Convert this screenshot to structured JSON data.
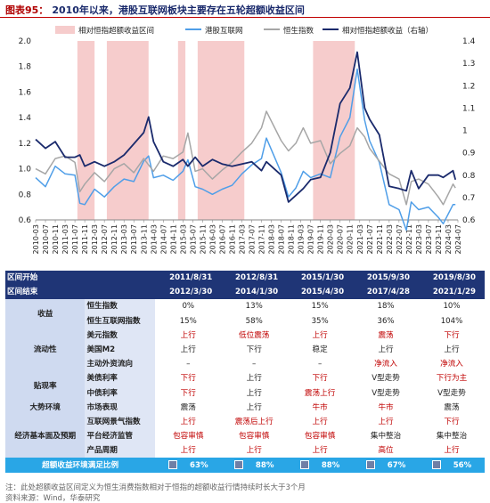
{
  "header": {
    "label": "图表95：",
    "text": "2010年以来，港股互联网板块主要存在五轮超额收益区间"
  },
  "chart_data": {
    "type": "line",
    "legend": [
      "相对恒指超额收益区间",
      "港股互联网",
      "恒生指数",
      "相对恒指超额收益（右轴）"
    ],
    "x_ticks": [
      "2010-03",
      "2010-07",
      "2010-11",
      "2011-03",
      "2011-07",
      "2011-11",
      "2012-03",
      "2012-07",
      "2012-11",
      "2013-03",
      "2013-07",
      "2013-11",
      "2014-03",
      "2014-07",
      "2014-11",
      "2015-03",
      "2015-07",
      "2015-11",
      "2016-03",
      "2016-07",
      "2016-11",
      "2017-03",
      "2017-07",
      "2017-11",
      "2018-03",
      "2018-07",
      "2018-11",
      "2019-03",
      "2019-07",
      "2019-11",
      "2020-03",
      "2020-07",
      "2020-11",
      "2021-03",
      "2021-07",
      "2021-11",
      "2022-03",
      "2022-07",
      "2022-11",
      "2023-03",
      "2023-07",
      "2023-11",
      "2024-03",
      "2024-07"
    ],
    "left_axis": {
      "ylim": [
        0.6,
        2.0
      ],
      "ticks": [
        "0.6",
        "0.8",
        "1.0",
        "1.2",
        "1.4",
        "1.6",
        "1.8",
        "2.0"
      ]
    },
    "right_axis": {
      "ylim": [
        0.6,
        1.4
      ],
      "ticks": [
        "0.6",
        "0.7",
        "0.8",
        "0.9",
        "1",
        "1.1",
        "1.2",
        "1.3",
        "1.4"
      ]
    },
    "shaded_periods": [
      [
        "2011-08",
        "2012-03"
      ],
      [
        "2012-08",
        "2014-01"
      ],
      [
        "2015-01",
        "2015-04"
      ],
      [
        "2015-09",
        "2017-04"
      ],
      [
        "2019-08",
        "2021-01"
      ]
    ],
    "colors": {
      "shade": "#f6cccc",
      "hk_internet": "#4f9ee8",
      "hsi": "#a6a6a6",
      "relative": "#1a2a6c"
    },
    "series": [
      {
        "name": "港股互联网",
        "axis": "left",
        "points": [
          [
            "2010-03",
            0.93
          ],
          [
            "2010-07",
            0.86
          ],
          [
            "2010-11",
            1.02
          ],
          [
            "2011-03",
            0.96
          ],
          [
            "2011-07",
            0.95
          ],
          [
            "2011-09",
            0.73
          ],
          [
            "2011-11",
            0.72
          ],
          [
            "2012-03",
            0.84
          ],
          [
            "2012-07",
            0.78
          ],
          [
            "2012-11",
            0.86
          ],
          [
            "2013-03",
            0.92
          ],
          [
            "2013-07",
            0.9
          ],
          [
            "2013-11",
            1.06
          ],
          [
            "2014-01",
            1.1
          ],
          [
            "2014-03",
            0.93
          ],
          [
            "2014-07",
            0.95
          ],
          [
            "2014-11",
            0.91
          ],
          [
            "2015-03",
            0.98
          ],
          [
            "2015-05",
            1.07
          ],
          [
            "2015-08",
            0.86
          ],
          [
            "2015-11",
            0.84
          ],
          [
            "2016-03",
            0.8
          ],
          [
            "2016-07",
            0.84
          ],
          [
            "2016-11",
            0.87
          ],
          [
            "2017-03",
            0.96
          ],
          [
            "2017-07",
            1.03
          ],
          [
            "2017-11",
            1.08
          ],
          [
            "2018-01",
            1.24
          ],
          [
            "2018-07",
            0.97
          ],
          [
            "2018-10",
            0.78
          ],
          [
            "2019-01",
            0.85
          ],
          [
            "2019-04",
            0.98
          ],
          [
            "2019-07",
            0.93
          ],
          [
            "2019-11",
            0.96
          ],
          [
            "2020-03",
            0.93
          ],
          [
            "2020-07",
            1.25
          ],
          [
            "2020-11",
            1.4
          ],
          [
            "2021-02",
            1.78
          ],
          [
            "2021-05",
            1.38
          ],
          [
            "2021-07",
            1.22
          ],
          [
            "2021-11",
            1.05
          ],
          [
            "2022-03",
            0.72
          ],
          [
            "2022-07",
            0.68
          ],
          [
            "2022-10",
            0.52
          ],
          [
            "2022-12",
            0.74
          ],
          [
            "2023-03",
            0.68
          ],
          [
            "2023-07",
            0.7
          ],
          [
            "2023-11",
            0.62
          ],
          [
            "2024-01",
            0.57
          ],
          [
            "2024-05",
            0.72
          ],
          [
            "2024-06",
            0.72
          ]
        ]
      },
      {
        "name": "恒生指数",
        "axis": "left",
        "points": [
          [
            "2010-03",
            1.0
          ],
          [
            "2010-07",
            0.96
          ],
          [
            "2010-11",
            1.08
          ],
          [
            "2011-03",
            1.1
          ],
          [
            "2011-07",
            1.05
          ],
          [
            "2011-09",
            0.82
          ],
          [
            "2011-11",
            0.88
          ],
          [
            "2012-03",
            0.97
          ],
          [
            "2012-07",
            0.9
          ],
          [
            "2012-11",
            1.0
          ],
          [
            "2013-03",
            1.04
          ],
          [
            "2013-07",
            0.97
          ],
          [
            "2013-11",
            1.08
          ],
          [
            "2014-03",
            0.98
          ],
          [
            "2014-07",
            1.1
          ],
          [
            "2014-11",
            1.08
          ],
          [
            "2015-03",
            1.13
          ],
          [
            "2015-05",
            1.28
          ],
          [
            "2015-08",
            0.98
          ],
          [
            "2015-11",
            1.0
          ],
          [
            "2016-03",
            0.92
          ],
          [
            "2016-07",
            0.99
          ],
          [
            "2016-11",
            1.05
          ],
          [
            "2017-03",
            1.13
          ],
          [
            "2017-07",
            1.2
          ],
          [
            "2017-11",
            1.32
          ],
          [
            "2018-01",
            1.45
          ],
          [
            "2018-07",
            1.22
          ],
          [
            "2018-10",
            1.14
          ],
          [
            "2019-01",
            1.2
          ],
          [
            "2019-04",
            1.32
          ],
          [
            "2019-07",
            1.2
          ],
          [
            "2019-11",
            1.22
          ],
          [
            "2020-03",
            1.04
          ],
          [
            "2020-07",
            1.12
          ],
          [
            "2020-11",
            1.18
          ],
          [
            "2021-02",
            1.32
          ],
          [
            "2021-05",
            1.25
          ],
          [
            "2021-07",
            1.16
          ],
          [
            "2021-11",
            1.06
          ],
          [
            "2022-03",
            0.96
          ],
          [
            "2022-07",
            0.92
          ],
          [
            "2022-10",
            0.72
          ],
          [
            "2022-12",
            0.9
          ],
          [
            "2023-03",
            0.92
          ],
          [
            "2023-07",
            0.88
          ],
          [
            "2023-11",
            0.78
          ],
          [
            "2024-01",
            0.72
          ],
          [
            "2024-05",
            0.88
          ],
          [
            "2024-06",
            0.85
          ]
        ]
      },
      {
        "name": "相对恒指超额收益（右轴）",
        "axis": "right",
        "points": [
          [
            "2010-03",
            0.96
          ],
          [
            "2010-07",
            0.92
          ],
          [
            "2010-11",
            0.95
          ],
          [
            "2011-03",
            0.88
          ],
          [
            "2011-07",
            0.88
          ],
          [
            "2011-09",
            0.89
          ],
          [
            "2011-11",
            0.84
          ],
          [
            "2012-03",
            0.86
          ],
          [
            "2012-07",
            0.84
          ],
          [
            "2012-11",
            0.86
          ],
          [
            "2013-03",
            0.89
          ],
          [
            "2013-07",
            0.94
          ],
          [
            "2013-11",
            0.99
          ],
          [
            "2014-01",
            1.06
          ],
          [
            "2014-03",
            0.95
          ],
          [
            "2014-07",
            0.86
          ],
          [
            "2014-11",
            0.84
          ],
          [
            "2015-03",
            0.87
          ],
          [
            "2015-05",
            0.84
          ],
          [
            "2015-08",
            0.88
          ],
          [
            "2015-11",
            0.84
          ],
          [
            "2016-03",
            0.87
          ],
          [
            "2016-07",
            0.85
          ],
          [
            "2016-11",
            0.84
          ],
          [
            "2017-03",
            0.85
          ],
          [
            "2017-07",
            0.86
          ],
          [
            "2017-11",
            0.82
          ],
          [
            "2018-01",
            0.86
          ],
          [
            "2018-07",
            0.8
          ],
          [
            "2018-10",
            0.68
          ],
          [
            "2019-01",
            0.71
          ],
          [
            "2019-04",
            0.74
          ],
          [
            "2019-07",
            0.78
          ],
          [
            "2019-11",
            0.79
          ],
          [
            "2020-03",
            0.9
          ],
          [
            "2020-07",
            1.12
          ],
          [
            "2020-11",
            1.19
          ],
          [
            "2021-02",
            1.35
          ],
          [
            "2021-05",
            1.1
          ],
          [
            "2021-07",
            1.05
          ],
          [
            "2021-11",
            0.98
          ],
          [
            "2022-03",
            0.75
          ],
          [
            "2022-07",
            0.74
          ],
          [
            "2022-10",
            0.73
          ],
          [
            "2022-12",
            0.82
          ],
          [
            "2023-03",
            0.74
          ],
          [
            "2023-07",
            0.8
          ],
          [
            "2023-11",
            0.8
          ],
          [
            "2024-01",
            0.79
          ],
          [
            "2024-05",
            0.82
          ],
          [
            "2024-06",
            0.78
          ]
        ]
      }
    ]
  },
  "table": {
    "header_rows": [
      [
        "区间开始",
        "",
        "2011/8/31",
        "2012/8/31",
        "2015/1/30",
        "2015/9/30",
        "2019/8/30"
      ],
      [
        "区间结束",
        "",
        "2012/3/30",
        "2014/1/30",
        "2015/4/30",
        "2017/4/28",
        "2021/1/29"
      ]
    ],
    "rows": [
      {
        "sec": "收益",
        "ind": "恒生指数",
        "v": [
          "0%",
          "13%",
          "15%",
          "18%",
          "10%"
        ],
        "red": [
          0,
          0,
          0,
          0,
          0
        ]
      },
      {
        "sec": "",
        "ind": "恒生互联网指数",
        "v": [
          "15%",
          "58%",
          "35%",
          "36%",
          "104%"
        ],
        "red": [
          0,
          0,
          0,
          0,
          0
        ]
      },
      {
        "sec": "流动性",
        "ind": "美元指数",
        "v": [
          "上行",
          "低位震荡",
          "上行",
          "震荡",
          "下行"
        ],
        "red": [
          1,
          1,
          1,
          1,
          1
        ]
      },
      {
        "sec": "",
        "ind": "美国M2",
        "v": [
          "上行",
          "下行",
          "稳定",
          "上行",
          "上行"
        ],
        "red": [
          0,
          0,
          0,
          0,
          0
        ]
      },
      {
        "sec": "",
        "ind": "主动外资流向",
        "v": [
          "–",
          "–",
          "–",
          "净流入",
          "净流入"
        ],
        "red": [
          0,
          0,
          0,
          1,
          1
        ]
      },
      {
        "sec": "贴现率",
        "ind": "美债利率",
        "v": [
          "下行",
          "上行",
          "下行",
          "V型走势",
          "下行为主"
        ],
        "red": [
          1,
          0,
          1,
          0,
          1
        ]
      },
      {
        "sec": "",
        "ind": "中债利率",
        "v": [
          "下行",
          "上行",
          "震荡上行",
          "V型走势",
          "V型走势"
        ],
        "red": [
          1,
          0,
          1,
          0,
          0
        ]
      },
      {
        "sec": "大势环境",
        "ind": "市场表现",
        "v": [
          "震荡",
          "上行",
          "牛市",
          "牛市",
          "震荡"
        ],
        "red": [
          0,
          0,
          1,
          1,
          0
        ]
      },
      {
        "sec": "经济基本面及预期",
        "ind": "互联网景气指数",
        "v": [
          "上行",
          "震荡后上行",
          "上行",
          "上行",
          "下行"
        ],
        "red": [
          1,
          1,
          1,
          1,
          1
        ]
      },
      {
        "sec": "",
        "ind": "平台经济监管",
        "v": [
          "包容审慎",
          "包容审慎",
          "包容审慎",
          "集中整治",
          "集中整治"
        ],
        "red": [
          1,
          1,
          1,
          0,
          0
        ]
      },
      {
        "sec": "",
        "ind": "产品周期",
        "v": [
          "上行",
          "上行",
          "上行",
          "高位",
          "上行"
        ],
        "red": [
          1,
          1,
          1,
          1,
          1
        ]
      }
    ],
    "summary": {
      "label": "超额收益环境满足比例",
      "v": [
        "63%",
        "88%",
        "88%",
        "67%",
        "56%"
      ]
    }
  },
  "notes": [
    "注：此处超额收益区间定义为恒生消费指数相对于恒指的超额收益行情持续时长大于3个月",
    "资料来源：Wind，华泰研究"
  ]
}
